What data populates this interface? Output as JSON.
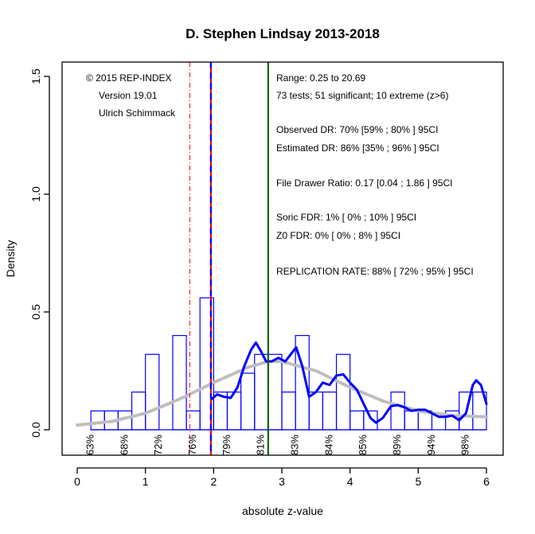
{
  "chart_data": {
    "type": "histogram",
    "title": "D. Stephen Lindsay 2013-2018",
    "xlabel": "absolute z-value",
    "ylabel": "Density",
    "xlim": [
      0,
      6
    ],
    "ylim": [
      0,
      1.5
    ],
    "x_ticks": [
      "0",
      "1",
      "2",
      "3",
      "4",
      "5",
      "6"
    ],
    "x_tick_values": [
      0,
      1,
      2,
      3,
      4,
      5,
      6
    ],
    "y_ticks": [
      "0.0",
      "0.5",
      "1.0",
      "1.5"
    ],
    "y_tick_values": [
      0,
      0.5,
      1.0,
      1.5
    ],
    "bins": {
      "start": 0.2,
      "width": 0.2,
      "values": [
        0.08,
        0.08,
        0.08,
        0.16,
        0.32,
        0,
        0.4,
        0.08,
        0.56,
        0.16,
        0.16,
        0.24,
        0.32,
        0.32,
        0.16,
        0.4,
        0.16,
        0.16,
        0.32,
        0.08,
        0.08,
        0,
        0.16,
        0.08,
        0.08,
        0,
        0.08,
        0.16,
        0.16
      ]
    },
    "series": [
      {
        "name": "observed density",
        "color": "#0000ff",
        "points": [
          [
            1.97,
            0.13
          ],
          [
            2.05,
            0.15
          ],
          [
            2.15,
            0.14
          ],
          [
            2.25,
            0.135
          ],
          [
            2.35,
            0.18
          ],
          [
            2.45,
            0.27
          ],
          [
            2.55,
            0.34
          ],
          [
            2.62,
            0.37
          ],
          [
            2.7,
            0.33
          ],
          [
            2.77,
            0.29
          ],
          [
            2.85,
            0.29
          ],
          [
            2.95,
            0.305
          ],
          [
            3.05,
            0.29
          ],
          [
            3.13,
            0.32
          ],
          [
            3.21,
            0.35
          ],
          [
            3.3,
            0.27
          ],
          [
            3.4,
            0.14
          ],
          [
            3.5,
            0.16
          ],
          [
            3.6,
            0.2
          ],
          [
            3.7,
            0.19
          ],
          [
            3.8,
            0.23
          ],
          [
            3.9,
            0.235
          ],
          [
            4.0,
            0.2
          ],
          [
            4.1,
            0.17
          ],
          [
            4.2,
            0.11
          ],
          [
            4.3,
            0.05
          ],
          [
            4.38,
            0.03
          ],
          [
            4.48,
            0.05
          ],
          [
            4.6,
            0.1
          ],
          [
            4.7,
            0.105
          ],
          [
            4.8,
            0.095
          ],
          [
            4.9,
            0.08
          ],
          [
            5.0,
            0.085
          ],
          [
            5.1,
            0.085
          ],
          [
            5.2,
            0.07
          ],
          [
            5.3,
            0.055
          ],
          [
            5.4,
            0.055
          ],
          [
            5.5,
            0.06
          ],
          [
            5.6,
            0.04
          ],
          [
            5.7,
            0.07
          ],
          [
            5.8,
            0.19
          ],
          [
            5.85,
            0.21
          ],
          [
            5.92,
            0.19
          ],
          [
            6.0,
            0.11
          ]
        ]
      },
      {
        "name": "fitted density",
        "color": "#bebebe",
        "points": [
          [
            0,
            0.02
          ],
          [
            0.5,
            0.035
          ],
          [
            1,
            0.07
          ],
          [
            1.5,
            0.13
          ],
          [
            2,
            0.2
          ],
          [
            2.5,
            0.265
          ],
          [
            2.8,
            0.29
          ],
          [
            3.0,
            0.29
          ],
          [
            3.5,
            0.25
          ],
          [
            4.0,
            0.18
          ],
          [
            4.5,
            0.12
          ],
          [
            5.0,
            0.08
          ],
          [
            5.5,
            0.06
          ],
          [
            6.0,
            0.055
          ]
        ]
      }
    ],
    "vlines": [
      {
        "x": 1.65,
        "color": "#ff0000",
        "style": "dashdot"
      },
      {
        "x": 1.96,
        "color": "#ff0000",
        "style": "solid"
      },
      {
        "x": 1.96,
        "color": "#0000ff",
        "style": "dashed"
      },
      {
        "x": 2.8,
        "color": "#006400",
        "style": "solid"
      }
    ],
    "power_labels": {
      "x": [
        0.25,
        0.75,
        1.25,
        1.75,
        2.25,
        2.75,
        3.25,
        3.75,
        4.25,
        4.75,
        5.25,
        5.75
      ],
      "labels": [
        "63%",
        "68%",
        "72%",
        "76%",
        "79%",
        "81%",
        "83%",
        "84%",
        "85%",
        "89%",
        "94%",
        "98%"
      ]
    },
    "annotations_left": [
      "© 2015 REP-INDEX",
      "Version 19.01",
      "Ulrich Schimmack"
    ],
    "annotations_right": [
      "Range: 0.25 to 20.69",
      "73 tests; 51 significant; 10 extreme (z>6)",
      "Observed DR: 70% [59% ; 80% ] 95CI",
      "Estimated DR: 86% [35% ; 96% ] 95CI",
      "File Drawer Ratio: 0.17 [0.04 ; 1.86 ] 95CI",
      "Soric FDR: 1% [ 0% ; 10% ] 95CI",
      "Z0 FDR: 0% [ 0% ; 8% ] 95CI",
      "REPLICATION RATE: 88% [ 72% ; 95% ] 95CI"
    ]
  }
}
